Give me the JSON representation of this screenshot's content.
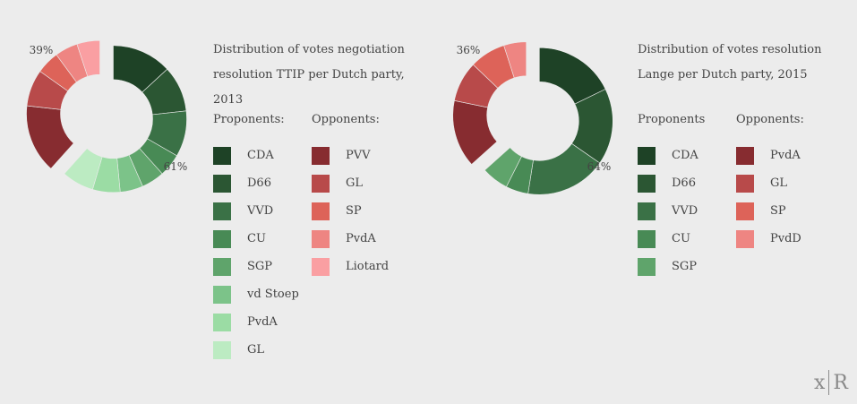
{
  "chart_data": [
    {
      "type": "pie",
      "variant": "donut",
      "title_lines": [
        "Distribution of votes negotiation",
        "resolution TTIP per Dutch party, 2013"
      ],
      "proponents_label": "Proponents:",
      "opponents_label": "Opponents:",
      "proponents_pct_label": "61%",
      "opponents_pct_label": "39%",
      "proponents": [
        {
          "party": "CDA",
          "value": 13,
          "color": "#1e4226"
        },
        {
          "party": "D66",
          "value": 10,
          "color": "#2b5633"
        },
        {
          "party": "VVD",
          "value": 10,
          "color": "#3a7146"
        },
        {
          "party": "CU",
          "value": 5,
          "color": "#488a55"
        },
        {
          "party": "SGP",
          "value": 5,
          "color": "#5fa46b"
        },
        {
          "party": "vd Stoep",
          "value": 5,
          "color": "#7cc389"
        },
        {
          "party": "PvdA",
          "value": 6,
          "color": "#9bdca4"
        },
        {
          "party": "GL",
          "value": 7,
          "color": "#bcebc2"
        }
      ],
      "opponents": [
        {
          "party": "PVV",
          "value": 15,
          "color": "#872c30"
        },
        {
          "party": "GL",
          "value": 8,
          "color": "#b84a4a"
        },
        {
          "party": "SP",
          "value": 5,
          "color": "#dd6359"
        },
        {
          "party": "PvdA",
          "value": 5,
          "color": "#ee8582"
        },
        {
          "party": "Liotard",
          "value": 5,
          "color": "#fa9fa2"
        }
      ]
    },
    {
      "type": "pie",
      "variant": "donut",
      "title_lines": [
        "Distribution of votes resolution",
        "Lange per Dutch party, 2015"
      ],
      "proponents_label": "Proponents",
      "opponents_label": "Opponents:",
      "proponents_pct_label": "64%",
      "opponents_pct_label": "36%",
      "proponents": [
        {
          "party": "CDA",
          "value": 18,
          "color": "#1e4226"
        },
        {
          "party": "D66",
          "value": 17,
          "color": "#2b5633"
        },
        {
          "party": "VVD",
          "value": 18,
          "color": "#3a7146"
        },
        {
          "party": "CU",
          "value": 5,
          "color": "#488a55"
        },
        {
          "party": "SGP",
          "value": 6,
          "color": "#5fa46b"
        }
      ],
      "opponents": [
        {
          "party": "PvdA",
          "value": 15,
          "color": "#872c30"
        },
        {
          "party": "GL",
          "value": 9,
          "color": "#b84a4a"
        },
        {
          "party": "SP",
          "value": 8,
          "color": "#dd6359"
        },
        {
          "party": "PvdD",
          "value": 5,
          "color": "#ee8582"
        }
      ]
    }
  ],
  "logo": {
    "left": "x",
    "right": "R"
  }
}
